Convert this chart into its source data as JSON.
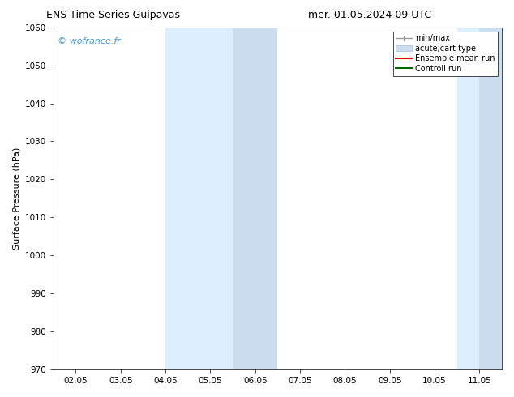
{
  "title_left": "ENS Time Series Guipavas",
  "title_right": "mer. 01.05.2024 09 UTC",
  "ylabel": "Surface Pressure (hPa)",
  "ylim": [
    970,
    1060
  ],
  "yticks": [
    970,
    980,
    990,
    1000,
    1010,
    1020,
    1030,
    1040,
    1050,
    1060
  ],
  "xtick_labels": [
    "02.05",
    "03.05",
    "04.05",
    "05.05",
    "06.05",
    "07.05",
    "08.05",
    "09.05",
    "10.05",
    "11.05"
  ],
  "xtick_positions": [
    0,
    1,
    2,
    3,
    4,
    5,
    6,
    7,
    8,
    9
  ],
  "xlim": [
    -0.5,
    9.5
  ],
  "shaded_bands": [
    {
      "x_start": 2.0,
      "x_end": 2.5,
      "color": "#ddeeff"
    },
    {
      "x_start": 2.5,
      "x_end": 3.5,
      "color": "#ddeeff"
    },
    {
      "x_start": 3.5,
      "x_end": 4.5,
      "color": "#ccddf0"
    },
    {
      "x_start": 8.5,
      "x_end": 9.0,
      "color": "#ddeeff"
    },
    {
      "x_start": 9.0,
      "x_end": 9.5,
      "color": "#ccddf0"
    }
  ],
  "watermark": "© wofrance.fr",
  "watermark_color": "#4499cc",
  "background_color": "#ffffff",
  "legend_items": [
    {
      "label": "min/max",
      "color": "#999999",
      "linestyle": "-",
      "linewidth": 1.0,
      "type": "line_with_caps"
    },
    {
      "label": "acute;cart type",
      "color": "#ccddf0",
      "edgecolor": "#aabbcc",
      "type": "patch"
    },
    {
      "label": "Ensemble mean run",
      "color": "#dd0000",
      "linestyle": "-",
      "linewidth": 1.5,
      "type": "line"
    },
    {
      "label": "Controll run",
      "color": "#006600",
      "linestyle": "-",
      "linewidth": 1.5,
      "type": "line"
    }
  ],
  "title_fontsize": 9,
  "axis_label_fontsize": 8,
  "tick_fontsize": 7.5,
  "legend_fontsize": 7,
  "watermark_fontsize": 8
}
